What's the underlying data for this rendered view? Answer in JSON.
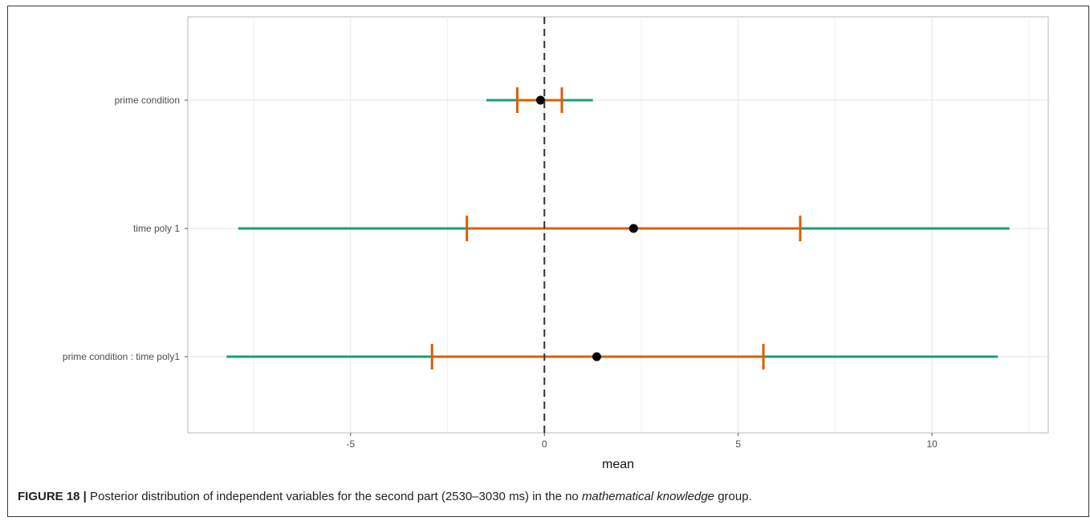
{
  "chart_data": {
    "type": "forest",
    "xlabel": "mean",
    "xlim": [
      -9.2,
      13.0
    ],
    "xticks": [
      -5,
      0,
      5,
      10
    ],
    "xtick_labels": [
      "-5",
      "0",
      "5",
      "10"
    ],
    "reference_line": 0,
    "grid": true,
    "rows": [
      {
        "label": "prime condition",
        "mean": -0.1,
        "inner": [
          -0.7,
          0.45
        ],
        "outer": [
          -1.5,
          1.25
        ]
      },
      {
        "label": "time poly 1",
        "mean": 2.3,
        "inner": [
          -2.0,
          6.6
        ],
        "outer": [
          -7.9,
          12.0
        ]
      },
      {
        "label": "prime condition : time poly1",
        "mean": 1.35,
        "inner": [
          -2.9,
          5.65
        ],
        "outer": [
          -8.2,
          11.7
        ]
      }
    ],
    "colors": {
      "outer": "#1a9e77",
      "inner": "#d95f02",
      "point": "#000000",
      "refline": "#333333"
    }
  },
  "caption": {
    "label": "FIGURE 18 |",
    "text_before": " Posterior distribution of independent variables for the second part (2530–3030 ms) in the no ",
    "text_italic": "mathematical knowledge",
    "text_after": " group."
  }
}
